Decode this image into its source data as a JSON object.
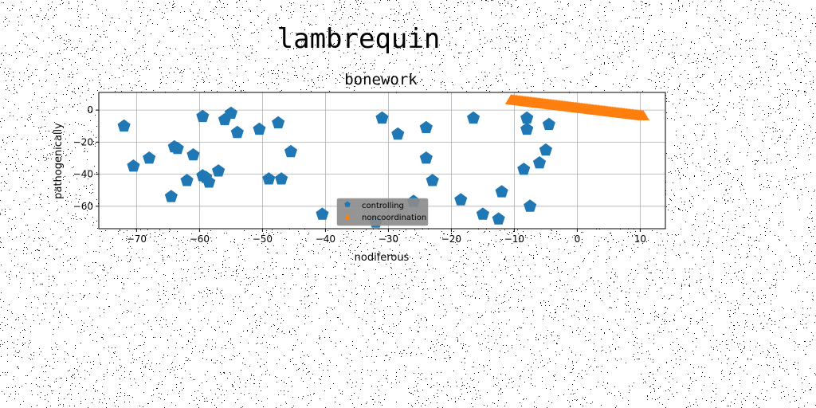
{
  "chart_data": {
    "type": "scatter",
    "suptitle": "lambrequin",
    "title": "bonework",
    "xlabel": "nodiferous",
    "ylabel": "pathogenically",
    "xlim": [
      -76,
      14
    ],
    "ylim": [
      -74,
      11
    ],
    "xticks": [
      -70,
      -60,
      -50,
      -40,
      -30,
      -20,
      -10,
      0,
      10
    ],
    "yticks": [
      0,
      -20,
      -40,
      -60
    ],
    "grid": true,
    "legend_position": "lower-center",
    "series": [
      {
        "name": "controlling",
        "marker": "pentagon",
        "color": "#1f77b4",
        "points": [
          [
            -72,
            -10
          ],
          [
            -70.5,
            -35
          ],
          [
            -68,
            -30
          ],
          [
            -64.5,
            -54
          ],
          [
            -64,
            -23
          ],
          [
            -63.5,
            -24
          ],
          [
            -62,
            -44
          ],
          [
            -61,
            -28
          ],
          [
            -59.5,
            -4
          ],
          [
            -59.5,
            -41
          ],
          [
            -59,
            -42
          ],
          [
            -58.5,
            -45
          ],
          [
            -57,
            -38
          ],
          [
            -56,
            -6
          ],
          [
            -55,
            -2
          ],
          [
            -54,
            -14
          ],
          [
            -50.5,
            -12
          ],
          [
            -49,
            -43
          ],
          [
            -47.5,
            -8
          ],
          [
            -47,
            -43
          ],
          [
            -45.5,
            -26
          ],
          [
            -40.5,
            -65
          ],
          [
            -32,
            -70
          ],
          [
            -31,
            -5
          ],
          [
            -28.5,
            -15
          ],
          [
            -26,
            -57
          ],
          [
            -24,
            -11
          ],
          [
            -24,
            -30
          ],
          [
            -23,
            -44
          ],
          [
            -18.5,
            -56
          ],
          [
            -16.5,
            -5
          ],
          [
            -15,
            -65
          ],
          [
            -12.5,
            -68
          ],
          [
            -12,
            -51
          ],
          [
            -8.5,
            -37
          ],
          [
            -8,
            -5
          ],
          [
            -8,
            -12
          ],
          [
            -7.5,
            -60
          ],
          [
            -6,
            -33
          ],
          [
            -5,
            -25
          ],
          [
            -4.5,
            -9
          ]
        ]
      },
      {
        "name": "noncoordination",
        "marker": "triangle-up",
        "color": "#ff7f0e",
        "x_range": [
          -10.5,
          10.5
        ],
        "y_range": [
          6,
          -4
        ]
      }
    ]
  }
}
